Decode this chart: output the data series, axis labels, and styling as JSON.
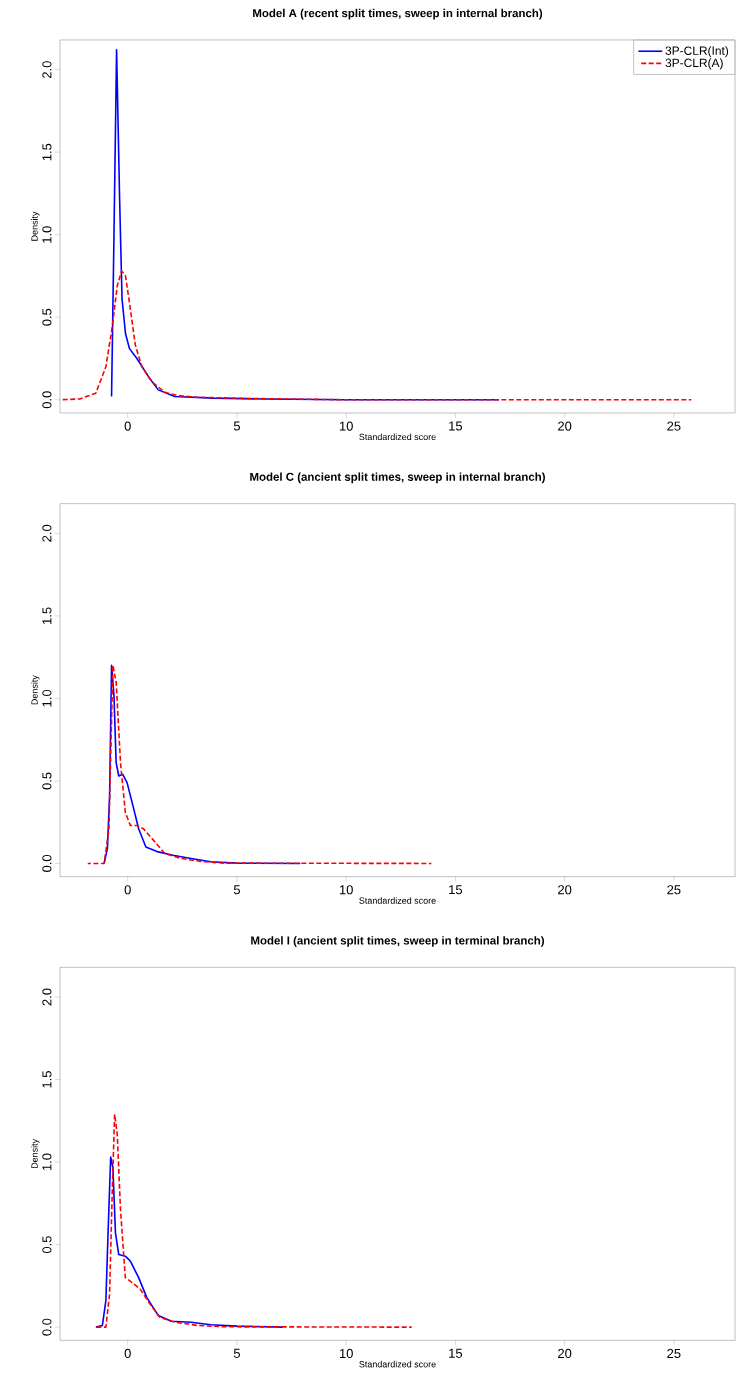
{
  "chart_data": [
    {
      "type": "line",
      "title": "Model A (recent split times, sweep in internal branch)",
      "xlabel": "Standardized score",
      "ylabel": "Density",
      "xlim": [
        -3.1,
        27.8
      ],
      "ylim": [
        -0.08,
        2.18
      ],
      "xticks": [
        0,
        5,
        10,
        15,
        20,
        25
      ],
      "yticks": [
        {
          "value": 0,
          "label": "0.0"
        },
        {
          "value": 0.5,
          "label": "0.5"
        },
        {
          "value": 1,
          "label": "1.0"
        },
        {
          "value": 1.5,
          "label": "1.5"
        },
        {
          "value": 2,
          "label": "2.0"
        }
      ],
      "legend": "top right",
      "series": [
        {
          "name": "3P-CLR(Int)",
          "color": "#0000ff",
          "line_style": "solid",
          "x": [
            -0.74,
            -0.63,
            -0.51,
            -0.37,
            -0.26,
            -0.1,
            0.08,
            0.42,
            0.95,
            1.4,
            2.15,
            3.9,
            6.2,
            10,
            17.0
          ],
          "values": [
            0.02,
            0.99,
            2.12,
            1.21,
            0.61,
            0.4,
            0.31,
            0.25,
            0.14,
            0.06,
            0.02,
            0.01,
            0.005,
            0,
            0
          ]
        },
        {
          "name": "3P-CLR(A)",
          "color": "#ff0000",
          "line_style": "dashed",
          "x": [
            -3.1,
            -2.2,
            -1.46,
            -1.0,
            -0.71,
            -0.48,
            -0.28,
            -0.1,
            0.12,
            0.35,
            0.65,
            1.1,
            1.7,
            2.3,
            3.2,
            5.5,
            10,
            25.8
          ],
          "values": [
            0,
            0.005,
            0.04,
            0.2,
            0.44,
            0.69,
            0.78,
            0.75,
            0.55,
            0.33,
            0.2,
            0.11,
            0.045,
            0.025,
            0.015,
            0.008,
            0,
            0
          ]
        }
      ]
    },
    {
      "type": "line",
      "title": "Model C (ancient split times, sweep in internal branch)",
      "xlabel": "Standardized score",
      "ylabel": "Density",
      "xlim": [
        -3.1,
        27.8
      ],
      "ylim": [
        -0.08,
        2.18
      ],
      "xticks": [
        0,
        5,
        10,
        15,
        20,
        25
      ],
      "yticks": [
        {
          "value": 0,
          "label": "0.0"
        },
        {
          "value": 0.5,
          "label": "0.5"
        },
        {
          "value": 1,
          "label": "1.0"
        },
        {
          "value": 1.5,
          "label": "1.5"
        },
        {
          "value": 2,
          "label": "2.0"
        }
      ],
      "series": [
        {
          "color": "#0000ff",
          "line_style": "solid",
          "x": [
            -1.08,
            -0.93,
            -0.83,
            -0.74,
            -0.63,
            -0.53,
            -0.41,
            -0.23,
            -0.03,
            0.2,
            0.5,
            0.83,
            1.4,
            2.07,
            2.9,
            3.8,
            5.0,
            7.9
          ],
          "values": [
            0,
            0.09,
            0.41,
            1.2,
            1.02,
            0.61,
            0.53,
            0.54,
            0.49,
            0.37,
            0.21,
            0.1,
            0.07,
            0.05,
            0.03,
            0.01,
            0.002,
            0
          ]
        },
        {
          "color": "#ff0000",
          "line_style": "dashed",
          "x": [
            -1.83,
            -1.08,
            -0.86,
            -0.68,
            -0.53,
            -0.33,
            -0.11,
            0.12,
            0.42,
            0.72,
            1.25,
            1.7,
            2.45,
            3.35,
            4.4,
            13.9
          ],
          "values": [
            0,
            0,
            0.21,
            1.2,
            1.1,
            0.61,
            0.31,
            0.23,
            0.23,
            0.21,
            0.13,
            0.06,
            0.03,
            0.012,
            0.002,
            0
          ]
        }
      ]
    },
    {
      "type": "line",
      "title": "Model I (ancient split times, sweep in terminal branch)",
      "xlabel": "Standardized score",
      "ylabel": "Density",
      "xlim": [
        -3.1,
        27.8
      ],
      "ylim": [
        -0.08,
        2.18
      ],
      "xticks": [
        0,
        5,
        10,
        15,
        20,
        25
      ],
      "yticks": [
        {
          "value": 0,
          "label": "0.0"
        },
        {
          "value": 0.5,
          "label": "0.5"
        },
        {
          "value": 1,
          "label": "1.0"
        },
        {
          "value": 1.5,
          "label": "1.5"
        },
        {
          "value": 2,
          "label": "2.0"
        }
      ],
      "series": [
        {
          "color": "#0000ff",
          "line_style": "solid",
          "x": [
            -1.46,
            -1.16,
            -1.0,
            -0.89,
            -0.78,
            -0.68,
            -0.56,
            -0.41,
            -0.11,
            0.12,
            0.5,
            0.87,
            1.4,
            2.0,
            2.9,
            3.8,
            5.0,
            7.1
          ],
          "values": [
            0,
            0.01,
            0.16,
            0.61,
            1.03,
            0.97,
            0.57,
            0.44,
            0.43,
            0.4,
            0.3,
            0.18,
            0.07,
            0.036,
            0.03,
            0.014,
            0.006,
            0
          ]
        },
        {
          "color": "#ff0000",
          "line_style": "dashed",
          "x": [
            -1.46,
            -1.0,
            -0.83,
            -0.71,
            -0.6,
            -0.48,
            -0.33,
            -0.11,
            0.2,
            0.57,
            1.02,
            1.47,
            2.15,
            3.2,
            4.4,
            13.0
          ],
          "values": [
            0,
            0,
            0.2,
            0.81,
            1.29,
            1.17,
            0.71,
            0.3,
            0.27,
            0.23,
            0.14,
            0.06,
            0.03,
            0.01,
            0.002,
            0
          ]
        }
      ]
    }
  ]
}
